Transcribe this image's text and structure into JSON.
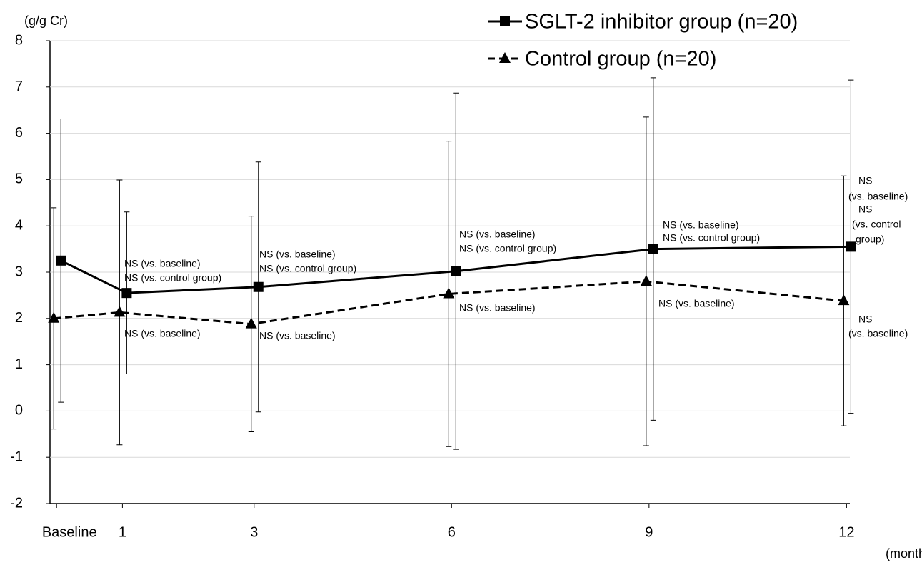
{
  "chart_data": {
    "type": "line",
    "y_axis_label": "(g/g Cr)",
    "x_axis_label": "(months)",
    "x": [
      0,
      1,
      3,
      6,
      9,
      12
    ],
    "xlim": [
      -0.1,
      12.05
    ],
    "xticks": [
      {
        "value": 0,
        "label": "Baseline"
      },
      1,
      3,
      6,
      9,
      12
    ],
    "ylim": [
      -2,
      8
    ],
    "yticks": [
      -2,
      -1,
      0,
      1,
      2,
      3,
      4,
      5,
      6,
      7,
      8
    ],
    "grid": true,
    "legend": "top-right",
    "series": [
      {
        "name": "SGLT-2 inhibitor group (n=20)",
        "color": "#000000",
        "marker": "square",
        "dash": false,
        "values": [
          3.25,
          2.55,
          2.68,
          3.02,
          3.5,
          3.55
        ],
        "errors": [
          3.06,
          1.75,
          2.7,
          3.85,
          3.7,
          3.6
        ]
      },
      {
        "name": "Control group (n=20)",
        "color": "#000000",
        "marker": "triangle",
        "dash": true,
        "values": [
          2.0,
          2.13,
          1.88,
          2.53,
          2.8,
          2.38
        ],
        "errors": [
          2.39,
          2.86,
          2.33,
          3.3,
          3.55,
          2.7
        ]
      }
    ],
    "annotations": [
      "NS (vs. baseline)",
      "NS (vs. control group)",
      "NS (vs. baseline)",
      "NS (vs. baseline)",
      "NS (vs. control group)",
      "NS (vs. baseline)",
      "NS (vs. baseline)",
      "NS (vs. control group)",
      "NS (vs. baseline)",
      "NS (vs. baseline)",
      "NS (vs. control group)",
      "NS (vs. baseline)",
      "NS",
      "(vs. baseline)",
      "NS",
      "(vs. control",
      "group)",
      "NS",
      "(vs. baseline)"
    ]
  }
}
